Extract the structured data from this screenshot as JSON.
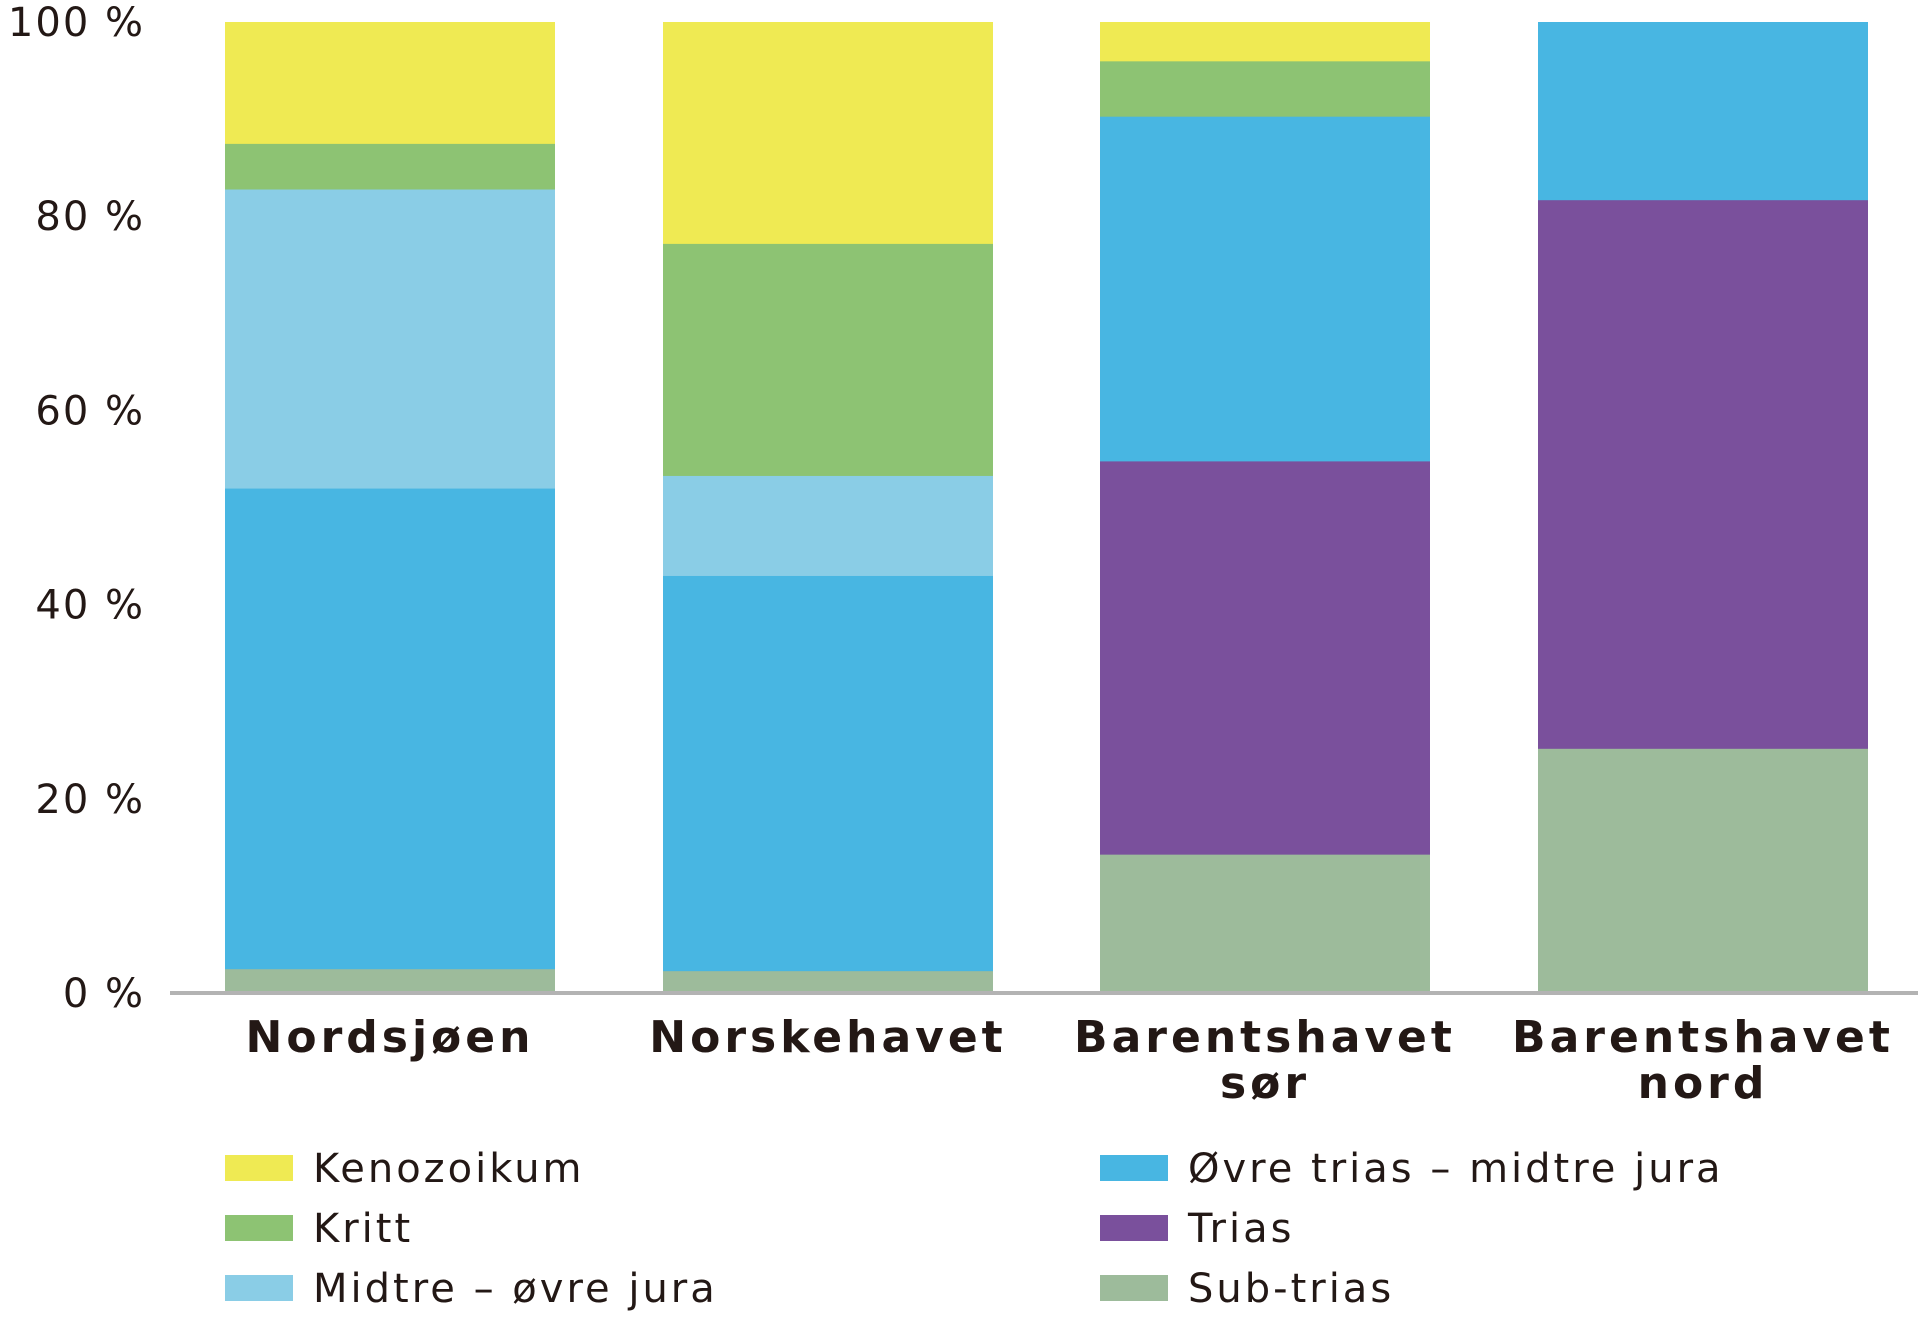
{
  "chart_data": {
    "type": "bar",
    "stacked": true,
    "percent": true,
    "categories": [
      [
        "Nordsjøen"
      ],
      [
        "Norskehavet"
      ],
      [
        "Barentshavet",
        "sør"
      ],
      [
        "Barentshavet",
        "nord"
      ]
    ],
    "series": [
      {
        "name": "Sub-trias",
        "color": "#9dbb9b",
        "values": [
          2.5,
          2.3,
          14.3,
          25.2
        ]
      },
      {
        "name": "Øvre trias – midtre jura",
        "color": "#48b6e2",
        "values": [
          49.5,
          40.7,
          0,
          0
        ]
      },
      {
        "name": "Midtre – øvre jura",
        "color": "#8acde6",
        "values": [
          30.8,
          10.3,
          0,
          0
        ]
      },
      {
        "name": "Trias",
        "color": "#7a509c",
        "values": [
          0,
          0,
          40.5,
          56.5
        ]
      },
      {
        "name": "Øvre trias – midtre jura",
        "color": "#48b6e2",
        "values": [
          0,
          0,
          35.5,
          18.3
        ]
      },
      {
        "name": "Kritt",
        "color": "#8dc373",
        "values": [
          4.7,
          23.9,
          5.7,
          0
        ]
      },
      {
        "name": "Kenozoikum",
        "color": "#efea53",
        "values": [
          12.5,
          22.8,
          4.0,
          0
        ]
      }
    ],
    "yticks": [
      "0 %",
      "20 %",
      "40 %",
      "60 %",
      "80 %",
      "100 %"
    ],
    "ylim": [
      0,
      100
    ],
    "legend": [
      {
        "label": "Kenozoikum",
        "color": "#efea53"
      },
      {
        "label": "Kritt",
        "color": "#8dc373"
      },
      {
        "label": "Midtre – øvre jura",
        "color": "#8acde6"
      },
      {
        "label": "Øvre trias – midtre jura",
        "color": "#48b6e2"
      },
      {
        "label": "Trias",
        "color": "#7a509c"
      },
      {
        "label": "Sub-trias",
        "color": "#9dbb9b"
      }
    ],
    "axis_color": "#b3b3b3"
  }
}
